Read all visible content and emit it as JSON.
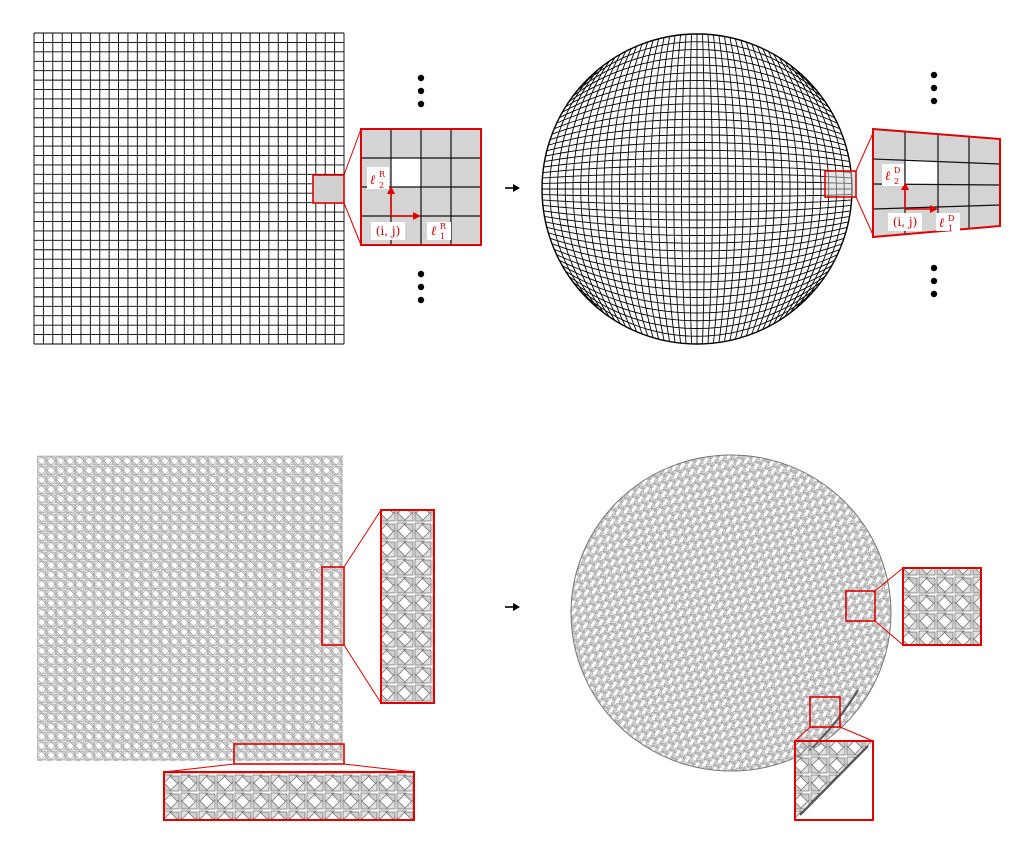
{
  "figure": {
    "panels": [
      {
        "id": "reference-grid",
        "description_kind": "square quad mesh",
        "grid_divisions": 33
      },
      {
        "id": "deformed-grid-sphere",
        "description_kind": "quad mesh mapped to disk",
        "grid_divisions": 40
      },
      {
        "id": "reference-kirigami",
        "description_kind": "rotated-square kirigami pattern"
      },
      {
        "id": "deployed-kirigami",
        "description_kind": "deployed kirigami sphere"
      }
    ],
    "labels": {
      "ref_cell_index": "(i, j)",
      "ref_vec1_main": "ℓ",
      "ref_vec1_sub": "1",
      "ref_vec1_sup": "R",
      "ref_vec2_main": "ℓ",
      "ref_vec2_sub": "2",
      "ref_vec2_sup": "R",
      "def_cell_index": "(i, j)",
      "def_vec1_main": "ℓ",
      "def_vec1_sub": "1",
      "def_vec1_sup": "D",
      "def_vec2_main": "ℓ",
      "def_vec2_sub": "2",
      "def_vec2_sup": "D"
    },
    "colors": {
      "mesh": "#000000",
      "highlight": "#e00000",
      "cell_fill": "#d4d4d4",
      "kirigami_stroke": "#8a8a8a",
      "kirigami_fill": "#dcdcdc"
    }
  }
}
